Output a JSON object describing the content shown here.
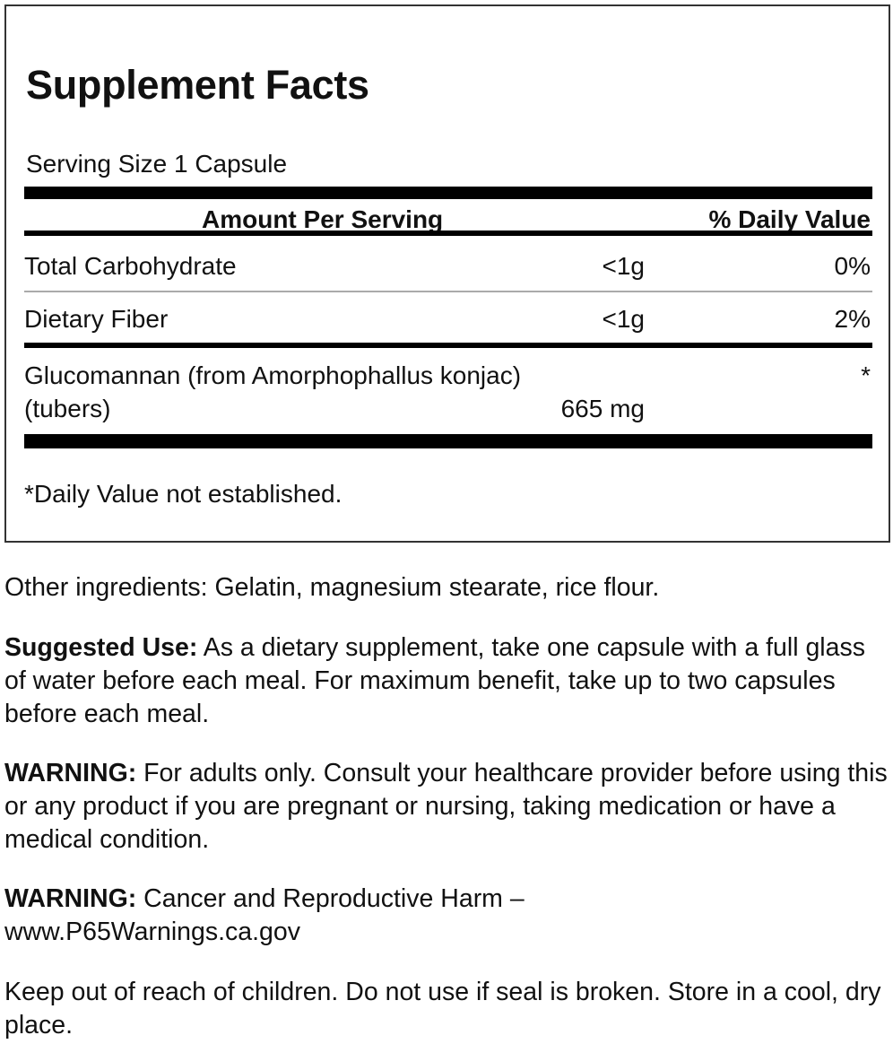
{
  "facts": {
    "title": "Supplement Facts",
    "serving_size": "Serving Size 1 Capsule",
    "header_amount": "Amount Per Serving",
    "header_dv": "% Daily Value",
    "rows": [
      {
        "name": "Total Carbohydrate",
        "amount": "<1g",
        "dv": "0%"
      },
      {
        "name": "Dietary Fiber",
        "amount": "<1g",
        "dv": "2%"
      },
      {
        "name": "Glucomannan (from Amorphophallus konjac)",
        "name2": "(tubers)",
        "amount": "665 mg",
        "dv": "*"
      }
    ],
    "footnote": "*Daily Value not established."
  },
  "other_ingredients": "Other ingredients: Gelatin, magnesium stearate, rice flour.",
  "suggested_use": {
    "label": "Suggested Use:",
    "text": " As a dietary supplement, take one capsule with a full glass of water before each meal. For maximum benefit, take up to two capsules before each meal."
  },
  "warning1": {
    "label": "WARNING:",
    "text": " For adults only. Consult your healthcare provider before using this or any product if you are pregnant or nursing, taking medication or have a medical condition."
  },
  "warning2": {
    "label": "WARNING:",
    "text": " Cancer and Reproductive Harm –",
    "url": "www.P65Warnings.ca.gov"
  },
  "storage": "Keep out of reach of children. Do not use if seal is broken. Store in a cool, dry place."
}
